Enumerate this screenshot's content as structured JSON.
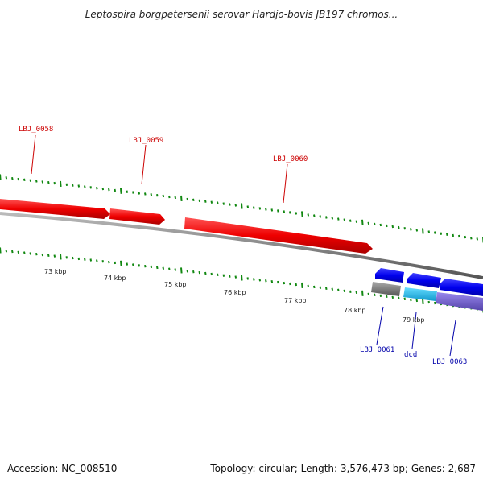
{
  "title": "Leptospira borgpetersenii serovar Hardjo-bovis JB197 chromos...",
  "footer": {
    "accession": "Accession: NC_008510",
    "summary": "Topology: circular; Length: 3,576,473 bp; Genes: 2,687"
  },
  "colors": {
    "forward_gene": "#ee0000",
    "reverse_gene": "#0000cc",
    "forward_label": "#cc0000",
    "reverse_label": "#0000aa",
    "tick": "#118811",
    "backbone": "#777777"
  },
  "scale_labels": [
    "73 kbp",
    "74 kbp",
    "75 kbp",
    "76 kbp",
    "77 kbp",
    "78 kbp",
    "79 kbp"
  ],
  "genes": [
    {
      "id": "LBJ_0058",
      "label": "LBJ_0058",
      "strand": "+",
      "color": "#ee0000"
    },
    {
      "id": "LBJ_0059",
      "label": "LBJ_0059",
      "strand": "+",
      "color": "#ee0000"
    },
    {
      "id": "LBJ_0060",
      "label": "LBJ_0060",
      "strand": "+",
      "color": "#ee0000"
    },
    {
      "id": "LBJ_0061",
      "label": "LBJ_0061",
      "strand": "-",
      "color": "#0000ee"
    },
    {
      "id": "dcd",
      "label": "dcd",
      "strand": "-",
      "color": "#0000ee"
    },
    {
      "id": "LBJ_0063",
      "label": "LBJ_0063",
      "strand": "-",
      "color": "#0000ee"
    }
  ],
  "features": [
    {
      "id": "gray-feature",
      "color": "#777777"
    },
    {
      "id": "cyan-feature",
      "color": "#22bbee"
    },
    {
      "id": "purple-feature",
      "color": "#7766cc"
    }
  ]
}
